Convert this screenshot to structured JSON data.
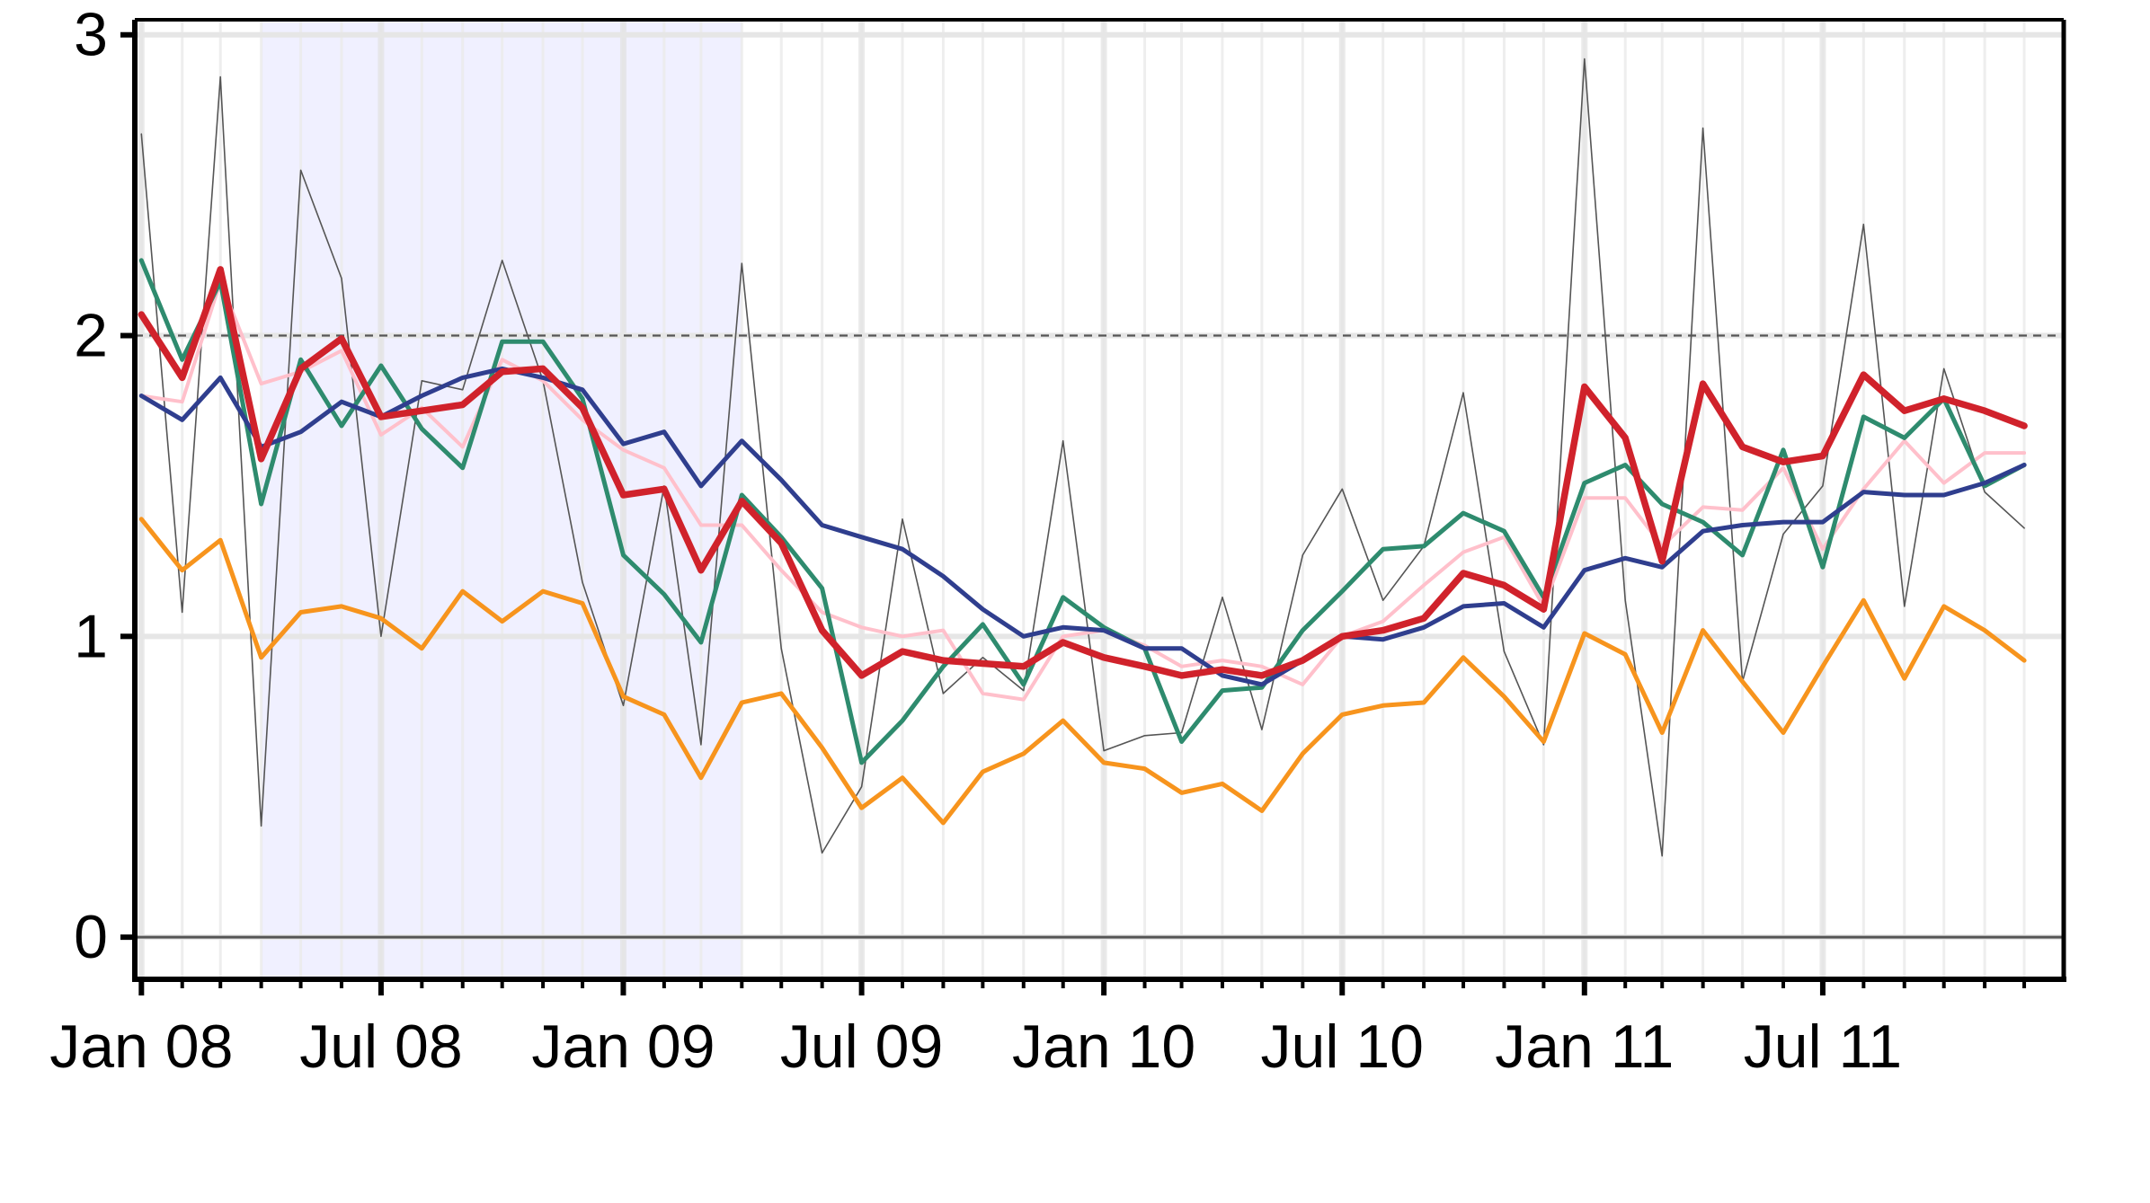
{
  "chart_data": {
    "type": "line",
    "title": "",
    "xlabel": "",
    "ylabel": "",
    "x": [
      "2008-01",
      "2008-02",
      "2008-03",
      "2008-04",
      "2008-05",
      "2008-06",
      "2008-07",
      "2008-08",
      "2008-09",
      "2008-10",
      "2008-11",
      "2008-12",
      "2009-01",
      "2009-02",
      "2009-03",
      "2009-04",
      "2009-05",
      "2009-06",
      "2009-07",
      "2009-08",
      "2009-09",
      "2009-10",
      "2009-11",
      "2009-12",
      "2010-01",
      "2010-02",
      "2010-03",
      "2010-04",
      "2010-05",
      "2010-06",
      "2010-07",
      "2010-08",
      "2010-09",
      "2010-10",
      "2010-11",
      "2010-12",
      "2011-01",
      "2011-02",
      "2011-03",
      "2011-04",
      "2011-05",
      "2011-06",
      "2011-07",
      "2011-08",
      "2011-09",
      "2011-10",
      "2011-11",
      "2011-12"
    ],
    "xlim": [
      "2007-12-27",
      "2011-12-31"
    ],
    "ylim": [
      -0.14,
      3.05
    ],
    "y_ticks": [
      "0",
      "1",
      "2",
      "3"
    ],
    "y_tick_values": [
      0,
      1,
      2,
      3
    ],
    "x_ticks": [
      "Jan 08",
      "Jul 08",
      "Jan 09",
      "Jul 09",
      "Jan 10",
      "Jul 10",
      "Jan 11",
      "Jul 11"
    ],
    "x_tick_dates": [
      "2008-01-01",
      "2008-07-01",
      "2009-01-01",
      "2009-07-01",
      "2010-01-01",
      "2010-07-01",
      "2011-01-01",
      "2011-07-01"
    ],
    "reference_line": 2,
    "zero_line": 0,
    "shaded_region": [
      "2008-04-01",
      "2009-04-01"
    ],
    "grid": true,
    "legend": "none",
    "series": [
      {
        "color": "#555555",
        "width": 1.6,
        "values": [
          2.67,
          1.08,
          2.86,
          0.37,
          2.55,
          2.19,
          1.0,
          1.85,
          1.82,
          2.25,
          1.85,
          1.18,
          0.77,
          1.5,
          0.64,
          2.24,
          0.96,
          0.28,
          0.5,
          1.39,
          0.81,
          0.93,
          0.82,
          1.65,
          0.62,
          0.67,
          0.68,
          1.13,
          0.69,
          1.27,
          1.49,
          1.12,
          1.3,
          1.81,
          0.95,
          0.64,
          2.92,
          1.12,
          0.27,
          2.69,
          0.85,
          1.34,
          1.5,
          2.37,
          1.1,
          1.89,
          1.48,
          1.36
        ]
      },
      {
        "color": "#FFC0CB",
        "width": 4,
        "values": [
          1.8,
          1.78,
          2.18,
          1.84,
          1.88,
          1.95,
          1.67,
          1.76,
          1.63,
          1.92,
          1.85,
          1.72,
          1.62,
          1.56,
          1.37,
          1.37,
          1.22,
          1.08,
          1.03,
          1.0,
          1.02,
          0.81,
          0.79,
          1.0,
          1.02,
          0.97,
          0.9,
          0.92,
          0.9,
          0.84,
          1.0,
          1.05,
          1.17,
          1.28,
          1.33,
          1.1,
          1.46,
          1.46,
          1.3,
          1.43,
          1.42,
          1.56,
          1.29,
          1.49,
          1.65,
          1.51,
          1.61,
          1.61
        ]
      },
      {
        "color": "#2E8B6E",
        "width": 5,
        "values": [
          2.25,
          1.92,
          2.18,
          1.44,
          1.92,
          1.7,
          1.9,
          1.69,
          1.56,
          1.98,
          1.98,
          1.79,
          1.27,
          1.14,
          0.98,
          1.47,
          1.33,
          1.16,
          0.58,
          0.72,
          0.9,
          1.04,
          0.84,
          1.13,
          1.03,
          0.96,
          0.65,
          0.82,
          0.83,
          1.02,
          1.15,
          1.29,
          1.3,
          1.41,
          1.35,
          1.13,
          1.51,
          1.57,
          1.44,
          1.38,
          1.27,
          1.62,
          1.23,
          1.73,
          1.66,
          1.79,
          1.5,
          1.57
        ]
      },
      {
        "color": "#2F3E8E",
        "width": 5,
        "values": [
          1.8,
          1.72,
          1.86,
          1.63,
          1.68,
          1.78,
          1.73,
          1.8,
          1.86,
          1.89,
          1.86,
          1.82,
          1.64,
          1.68,
          1.5,
          1.65,
          1.52,
          1.37,
          1.33,
          1.29,
          1.2,
          1.09,
          1.0,
          1.03,
          1.02,
          0.96,
          0.96,
          0.87,
          0.84,
          0.92,
          1.0,
          0.99,
          1.03,
          1.1,
          1.11,
          1.03,
          1.22,
          1.26,
          1.23,
          1.35,
          1.37,
          1.38,
          1.38,
          1.48,
          1.47,
          1.47,
          1.51,
          1.57
        ]
      },
      {
        "color": "#F7941D",
        "width": 5,
        "values": [
          1.39,
          1.22,
          1.32,
          0.93,
          1.08,
          1.1,
          1.06,
          0.96,
          1.15,
          1.05,
          1.15,
          1.11,
          0.8,
          0.74,
          0.53,
          0.78,
          0.81,
          0.63,
          0.43,
          0.53,
          0.38,
          0.55,
          0.61,
          0.72,
          0.58,
          0.56,
          0.48,
          0.51,
          0.42,
          0.61,
          0.74,
          0.77,
          0.78,
          0.93,
          0.8,
          0.65,
          1.01,
          0.94,
          0.68,
          1.02,
          0.85,
          0.68,
          0.9,
          1.12,
          0.86,
          1.1,
          1.02,
          0.92
        ]
      },
      {
        "color": "#D0222B",
        "width": 7.5,
        "values": [
          2.07,
          1.86,
          2.22,
          1.59,
          1.89,
          1.99,
          1.73,
          1.75,
          1.77,
          1.88,
          1.89,
          1.76,
          1.47,
          1.49,
          1.22,
          1.45,
          1.31,
          1.02,
          0.87,
          0.95,
          0.92,
          0.91,
          0.9,
          0.98,
          0.93,
          0.9,
          0.87,
          0.89,
          0.87,
          0.92,
          1.0,
          1.02,
          1.06,
          1.21,
          1.17,
          1.09,
          1.83,
          1.66,
          1.25,
          1.84,
          1.63,
          1.58,
          1.6,
          1.87,
          1.75,
          1.79,
          1.75,
          1.7
        ]
      }
    ]
  }
}
